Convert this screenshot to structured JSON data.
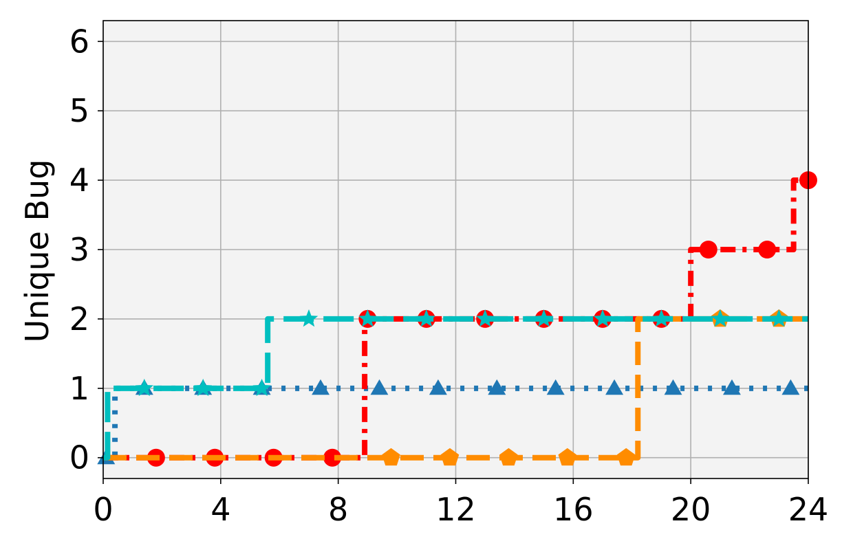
{
  "chart_data": {
    "type": "line",
    "title": "",
    "xlabel": "",
    "ylabel": "Unique Bug",
    "xlim": [
      0,
      24
    ],
    "ylim": [
      -0.3,
      6.3
    ],
    "xticks": [
      "0",
      "4",
      "8",
      "12",
      "16",
      "20",
      "24"
    ],
    "yticks": [
      "0",
      "1",
      "2",
      "3",
      "4",
      "5",
      "6"
    ],
    "grid": true,
    "background": "#f3f3f3",
    "series": [
      {
        "color": "#1f77b4",
        "dash": "dotted",
        "marker": "triangle",
        "steps": [
          [
            0,
            0
          ],
          [
            0.4,
            1
          ],
          [
            24,
            1
          ]
        ],
        "markers_x": [
          0.1,
          1.4,
          3.4,
          5.4,
          7.4,
          9.4,
          11.4,
          13.4,
          15.4,
          17.4,
          19.4,
          21.4,
          23.4
        ]
      },
      {
        "color": "#ff0000",
        "dash": "dashdot",
        "marker": "circle",
        "steps": [
          [
            0,
            0
          ],
          [
            8.9,
            2
          ],
          [
            20,
            3
          ],
          [
            23.5,
            4
          ],
          [
            24,
            4
          ]
        ],
        "markers_x": [
          1.8,
          3.8,
          5.8,
          7.8,
          9.0,
          11.0,
          13.0,
          15.0,
          17.0,
          19.0,
          20.6,
          22.6,
          24.0
        ]
      },
      {
        "color": "#ff8c00",
        "dash": "dashed",
        "marker": "pentagon",
        "steps": [
          [
            0,
            0
          ],
          [
            18.2,
            2
          ],
          [
            24,
            2
          ]
        ],
        "markers_x": [
          9.8,
          11.8,
          13.8,
          15.8,
          17.8,
          21.0,
          23.0
        ]
      },
      {
        "color": "#00bfbf",
        "dash": "longdash",
        "marker": "star",
        "steps": [
          [
            0,
            0
          ],
          [
            0.15,
            1
          ],
          [
            5.6,
            2
          ],
          [
            24,
            2
          ]
        ],
        "markers_x": [
          1.4,
          3.4,
          5.4,
          7.0,
          9.0,
          11.0,
          13.0,
          15.0,
          17.0,
          19.0,
          21.0,
          23.0
        ]
      }
    ]
  }
}
